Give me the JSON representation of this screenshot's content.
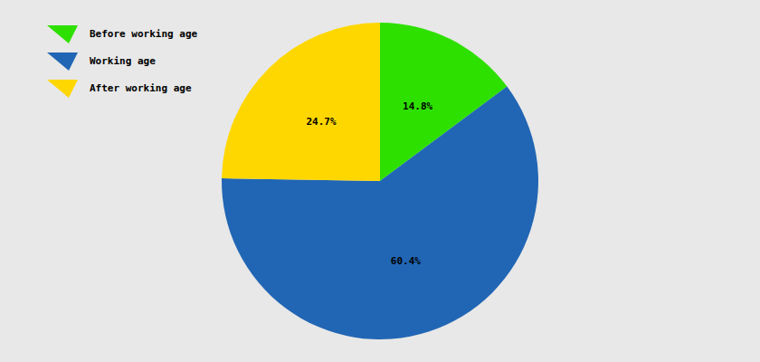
{
  "chart_data": {
    "type": "pie",
    "categories": [
      "Before working age",
      "Working age",
      "After working age"
    ],
    "values": [
      14.8,
      60.4,
      24.7
    ],
    "value_labels": [
      "14.8%",
      "60.4%",
      "24.7%"
    ],
    "colors": [
      "#2ee000",
      "#2166b4",
      "#ffd700"
    ],
    "data_labels": true,
    "legend": "top-left"
  }
}
